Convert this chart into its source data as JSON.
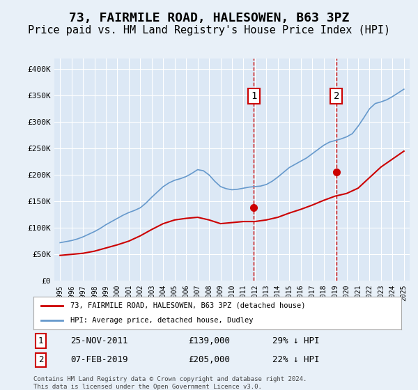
{
  "title": "73, FAIRMILE ROAD, HALESOWEN, B63 3PZ",
  "subtitle": "Price paid vs. HM Land Registry's House Price Index (HPI)",
  "title_fontsize": 13,
  "subtitle_fontsize": 11,
  "bg_color": "#e8f0f8",
  "plot_bg_color": "#dce8f5",
  "ylim": [
    0,
    420000
  ],
  "yticks": [
    0,
    50000,
    100000,
    150000,
    200000,
    250000,
    300000,
    350000,
    400000
  ],
  "ytick_labels": [
    "£0",
    "£50K",
    "£100K",
    "£150K",
    "£200K",
    "£250K",
    "£300K",
    "£350K",
    "£400K"
  ],
  "xlim_start": 1994.5,
  "xlim_end": 2025.5,
  "xticks": [
    1995,
    1996,
    1997,
    1998,
    1999,
    2000,
    2001,
    2002,
    2003,
    2004,
    2005,
    2006,
    2007,
    2008,
    2009,
    2010,
    2011,
    2012,
    2013,
    2014,
    2015,
    2016,
    2017,
    2018,
    2019,
    2020,
    2021,
    2022,
    2023,
    2024,
    2025
  ],
  "marker1_x": 2011.9,
  "marker1_label": "1",
  "marker2_x": 2019.1,
  "marker2_label": "2",
  "sale1_date": "25-NOV-2011",
  "sale1_price": "£139,000",
  "sale1_hpi": "29% ↓ HPI",
  "sale2_date": "07-FEB-2019",
  "sale2_price": "£205,000",
  "sale2_hpi": "22% ↓ HPI",
  "legend1": "73, FAIRMILE ROAD, HALESOWEN, B63 3PZ (detached house)",
  "legend2": "HPI: Average price, detached house, Dudley",
  "footnote": "Contains HM Land Registry data © Crown copyright and database right 2024.\nThis data is licensed under the Open Government Licence v3.0.",
  "red_color": "#cc0000",
  "blue_color": "#6699cc",
  "marker_box_color": "#cc0000",
  "hpi_years": [
    1995,
    1995.5,
    1996,
    1996.5,
    1997,
    1997.5,
    1998,
    1998.5,
    1999,
    1999.5,
    2000,
    2000.5,
    2001,
    2001.5,
    2002,
    2002.5,
    2003,
    2003.5,
    2004,
    2004.5,
    2005,
    2005.5,
    2006,
    2006.5,
    2007,
    2007.5,
    2008,
    2008.5,
    2009,
    2009.5,
    2010,
    2010.5,
    2011,
    2011.5,
    2012,
    2012.5,
    2013,
    2013.5,
    2014,
    2014.5,
    2015,
    2015.5,
    2016,
    2016.5,
    2017,
    2017.5,
    2018,
    2018.5,
    2019,
    2019.5,
    2020,
    2020.5,
    2021,
    2021.5,
    2022,
    2022.5,
    2023,
    2023.5,
    2024,
    2024.5,
    2025
  ],
  "hpi_values": [
    72000,
    74000,
    76000,
    79000,
    83000,
    88000,
    93000,
    99000,
    106000,
    112000,
    118000,
    124000,
    129000,
    133000,
    138000,
    147000,
    158000,
    168000,
    178000,
    185000,
    190000,
    193000,
    197000,
    203000,
    210000,
    208000,
    200000,
    188000,
    178000,
    174000,
    172000,
    173000,
    175000,
    177000,
    178000,
    179000,
    182000,
    188000,
    196000,
    205000,
    214000,
    220000,
    226000,
    232000,
    240000,
    248000,
    256000,
    262000,
    265000,
    268000,
    272000,
    278000,
    292000,
    308000,
    325000,
    335000,
    338000,
    342000,
    348000,
    355000,
    362000
  ],
  "price_years": [
    1995,
    1996,
    1997,
    1998,
    1999,
    2000,
    2001,
    2002,
    2003,
    2004,
    2005,
    2006,
    2007,
    2008,
    2009,
    2010,
    2011,
    2012,
    2013,
    2014,
    2015,
    2016,
    2017,
    2018,
    2019,
    2020,
    2021,
    2022,
    2023,
    2024,
    2025
  ],
  "price_values": [
    48000,
    50000,
    52000,
    56000,
    62000,
    68000,
    75000,
    85000,
    97000,
    108000,
    115000,
    118000,
    120000,
    115000,
    108000,
    110000,
    112000,
    112000,
    115000,
    120000,
    128000,
    135000,
    143000,
    152000,
    160000,
    165000,
    175000,
    195000,
    215000,
    230000,
    245000
  ],
  "sale1_price_y": 139000,
  "sale2_price_y": 205000
}
